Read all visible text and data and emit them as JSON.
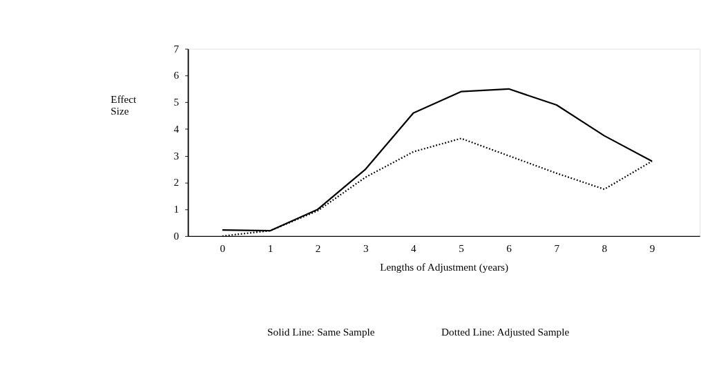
{
  "chart_data": {
    "type": "line",
    "xlabel": "Lengths of Adjustment (years)",
    "ylabel": "Effect Size",
    "categories": [
      "0",
      "1",
      "2",
      "3",
      "4",
      "5",
      "6",
      "7",
      "8",
      "9"
    ],
    "series": [
      {
        "color": "#000000",
        "line_style": "solid",
        "values": [
          0.23,
          0.2,
          1.0,
          2.5,
          4.6,
          5.4,
          5.5,
          4.9,
          3.75,
          2.8
        ]
      },
      {
        "color": "#000000",
        "line_style": "dotted",
        "values": [
          0.0,
          0.2,
          0.95,
          2.2,
          3.15,
          3.65,
          3.0,
          2.35,
          1.75,
          2.8
        ]
      }
    ],
    "ylim": [
      0,
      7
    ],
    "yticks": [
      0,
      1,
      2,
      3,
      4,
      5,
      6,
      7
    ],
    "grid": false,
    "marker": "none",
    "annotations": [
      "Solid Line: Same Sample",
      "Dotted Line: Adjusted Sample"
    ]
  }
}
